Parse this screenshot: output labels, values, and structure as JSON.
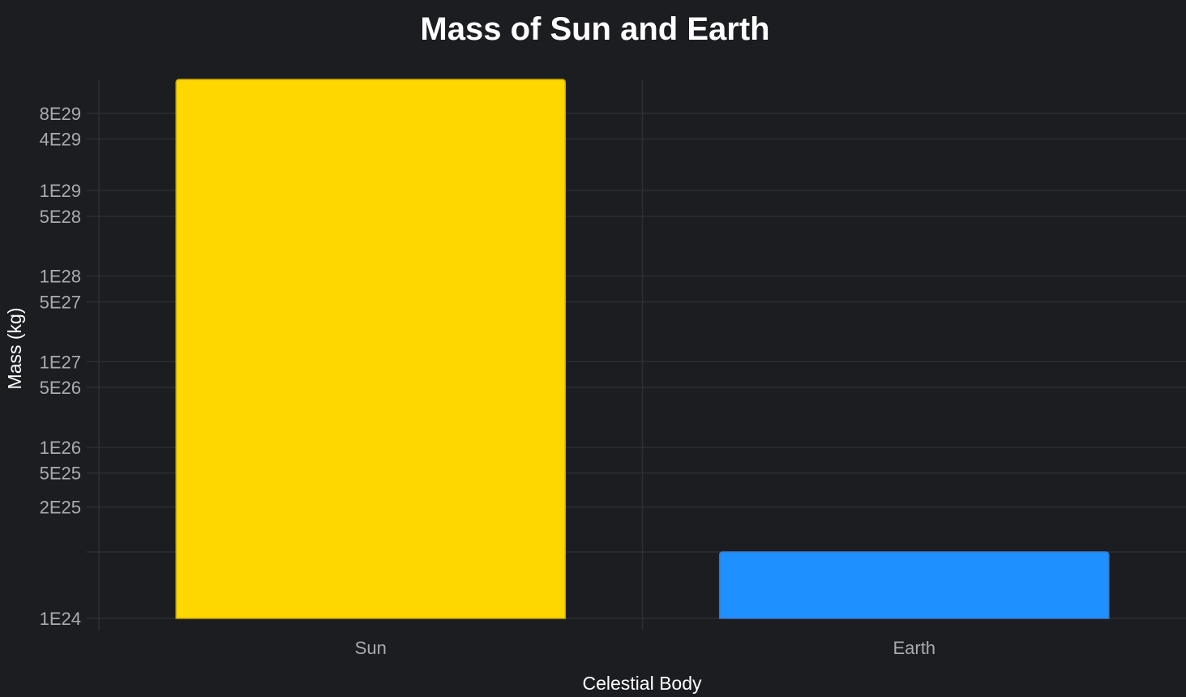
{
  "chart_data": {
    "type": "bar",
    "title": "Mass of Sun and Earth",
    "xlabel": "Celestial Body",
    "ylabel": "Mass (kg)",
    "categories": [
      "Sun",
      "Earth"
    ],
    "values": [
      1.989e+30,
      5.972e+24
    ],
    "colors": [
      "#ffd700",
      "#1e90ff"
    ],
    "border_colors": [
      "#c9a800",
      "#3a78c9"
    ],
    "y_scale": "log",
    "ylim": [
      1e+24,
      1.989e+30
    ],
    "y_ticks": [
      {
        "value": 1e+24,
        "label": "1E24"
      },
      {
        "value": 2e+25,
        "label": "2E25"
      },
      {
        "value": 5e+25,
        "label": "5E25"
      },
      {
        "value": 1e+26,
        "label": "1E26"
      },
      {
        "value": 5e+26,
        "label": "5E26"
      },
      {
        "value": 1e+27,
        "label": "1E27"
      },
      {
        "value": 5e+27,
        "label": "5E27"
      },
      {
        "value": 1e+28,
        "label": "1E28"
      },
      {
        "value": 5e+28,
        "label": "5E28"
      },
      {
        "value": 1e+29,
        "label": "1E29"
      },
      {
        "value": 4e+29,
        "label": "4E29"
      },
      {
        "value": 8e+29,
        "label": "8E29"
      }
    ],
    "extra_gridlines": [
      5.972e+24
    ],
    "grid": true,
    "background": "#1c1d21"
  }
}
